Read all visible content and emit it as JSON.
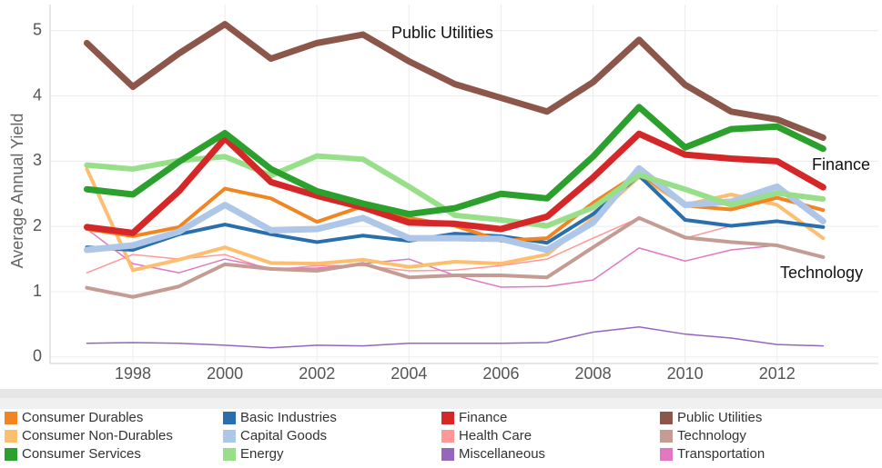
{
  "chart_data": {
    "type": "line",
    "y_label": "Average Annual Yield",
    "x": [
      1997,
      1998,
      1999,
      2000,
      2001,
      2002,
      2003,
      2004,
      2005,
      2006,
      2007,
      2008,
      2009,
      2010,
      2011,
      2012,
      2013
    ],
    "xlim": [
      1996.2,
      2014.2
    ],
    "xticks": [
      1998,
      2000,
      2002,
      2004,
      2006,
      2008,
      2010,
      2012
    ],
    "ylim": [
      -0.1,
      5.4
    ],
    "yticks": [
      0,
      1,
      2,
      3,
      4,
      5
    ],
    "grid": true,
    "annotations": [
      "Public Utilities",
      "Finance",
      "Technology"
    ],
    "series": [
      {
        "name": "Consumer Durables",
        "color": "#f28522",
        "values": [
          1.96,
          1.85,
          1.99,
          2.58,
          2.43,
          2.07,
          2.31,
          2.13,
          2.01,
          1.78,
          1.82,
          2.36,
          2.82,
          2.32,
          2.26,
          2.44,
          2.25
        ]
      },
      {
        "name": "Basic Industries",
        "color": "#2a6fad",
        "values": [
          1.68,
          1.64,
          1.88,
          2.03,
          1.88,
          1.76,
          1.86,
          1.78,
          1.89,
          1.85,
          1.75,
          2.19,
          2.78,
          2.1,
          2.01,
          2.08,
          1.99
        ]
      },
      {
        "name": "Finance",
        "color": "#d62728",
        "values": [
          1.99,
          1.9,
          2.54,
          3.35,
          2.68,
          2.47,
          2.29,
          2.06,
          2.04,
          1.96,
          2.15,
          2.75,
          3.42,
          3.1,
          3.04,
          3.0,
          2.6
        ]
      },
      {
        "name": "Public Utilities",
        "color": "#8c564b",
        "values": [
          4.81,
          4.14,
          4.65,
          5.1,
          4.57,
          4.81,
          4.94,
          4.53,
          4.18,
          3.97,
          3.76,
          4.21,
          4.86,
          4.17,
          3.76,
          3.64,
          3.36
        ]
      },
      {
        "name": "Consumer Non-Durables",
        "color": "#fdbf6f",
        "values": [
          2.88,
          1.33,
          1.49,
          1.68,
          1.44,
          1.43,
          1.49,
          1.38,
          1.46,
          1.43,
          1.57,
          2.13,
          2.76,
          2.33,
          2.49,
          2.33,
          1.82
        ]
      },
      {
        "name": "Capital Goods",
        "color": "#aec7e8",
        "values": [
          1.64,
          1.71,
          1.92,
          2.33,
          1.94,
          1.96,
          2.13,
          1.82,
          1.82,
          1.81,
          1.64,
          2.06,
          2.89,
          2.33,
          2.38,
          2.61,
          2.08
        ]
      },
      {
        "name": "Health Care",
        "color": "#ff9896",
        "values": [
          1.29,
          1.57,
          1.5,
          1.57,
          1.33,
          1.4,
          1.4,
          1.32,
          1.33,
          1.4,
          1.5,
          1.82,
          2.13,
          1.82,
          2.01,
          2.1,
          null
        ]
      },
      {
        "name": "Technology",
        "color": "#c49c94",
        "values": [
          1.06,
          0.92,
          1.08,
          1.42,
          1.35,
          1.32,
          1.43,
          1.22,
          1.25,
          1.25,
          1.22,
          1.68,
          2.13,
          1.83,
          1.76,
          1.71,
          1.53
        ]
      },
      {
        "name": "Consumer Services",
        "color": "#2ca02c",
        "values": [
          2.57,
          2.49,
          2.99,
          3.43,
          2.88,
          2.54,
          2.35,
          2.19,
          2.28,
          2.5,
          2.43,
          3.07,
          3.83,
          3.21,
          3.49,
          3.53,
          3.19
        ]
      },
      {
        "name": "Energy",
        "color": "#98df8a",
        "values": [
          2.94,
          2.88,
          3.01,
          3.07,
          2.78,
          3.08,
          3.03,
          2.61,
          2.17,
          2.1,
          2.01,
          2.29,
          2.79,
          2.57,
          2.33,
          2.51,
          2.42
        ]
      },
      {
        "name": "Miscellaneous",
        "color": "#9467bd",
        "values": [
          0.21,
          0.22,
          0.21,
          0.18,
          0.14,
          0.18,
          0.17,
          0.21,
          0.21,
          0.21,
          0.22,
          0.38,
          0.46,
          0.35,
          0.29,
          0.19,
          0.17
        ]
      },
      {
        "name": "Transportation",
        "color": "#e377c2",
        "values": [
          1.96,
          1.43,
          1.29,
          1.5,
          1.36,
          1.36,
          1.43,
          1.5,
          1.25,
          1.07,
          1.08,
          1.18,
          1.67,
          1.47,
          1.64,
          1.71,
          null
        ]
      }
    ]
  }
}
